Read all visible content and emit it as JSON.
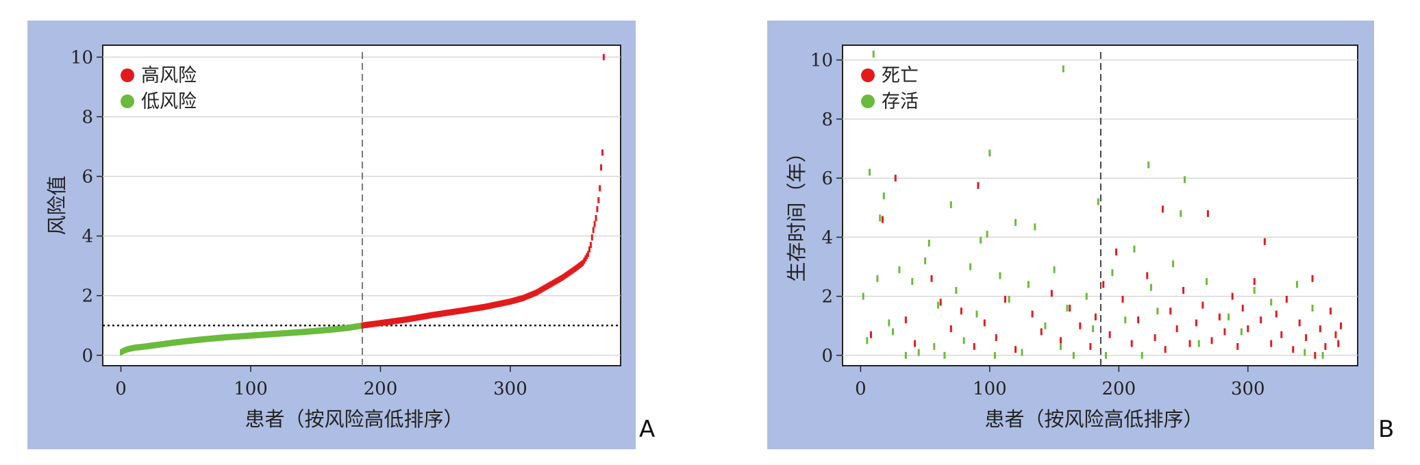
{
  "chart_data": [
    {
      "panel_label": "A",
      "type": "scatter",
      "xlabel": "患者（按风险高低排序）",
      "ylabel": "风险值",
      "xlim": [
        -14,
        385
      ],
      "ylim": [
        -0.35,
        10.4
      ],
      "xticks": [
        "0",
        "100",
        "200",
        "300"
      ],
      "xtick_values": [
        0,
        100,
        200,
        300
      ],
      "yticks": [
        "0",
        "2",
        "4",
        "6",
        "8",
        "10"
      ],
      "ytick_values": [
        0,
        2,
        4,
        6,
        8,
        10
      ],
      "grid": "horizontal",
      "legend_position": "top-left",
      "cutoff_x": 186,
      "cutoff_y": 1.0,
      "n_patients": 373,
      "series": [
        {
          "name": "高风险",
          "color": "#e31a1c",
          "x": [
            186,
            200,
            220,
            240,
            260,
            280,
            300,
            310,
            320,
            330,
            340,
            350,
            356,
            360,
            362,
            364,
            366,
            368,
            369,
            370,
            371,
            372
          ],
          "y": [
            1.0,
            1.08,
            1.2,
            1.35,
            1.48,
            1.62,
            1.8,
            1.92,
            2.1,
            2.35,
            2.6,
            2.9,
            3.1,
            3.4,
            3.7,
            4.2,
            4.6,
            5.2,
            5.6,
            6.3,
            6.8,
            10.0
          ]
        },
        {
          "name": "低风险",
          "color": "#6abb3c",
          "x": [
            0,
            2,
            5,
            10,
            20,
            40,
            60,
            80,
            100,
            120,
            140,
            160,
            175,
            185
          ],
          "y": [
            0.1,
            0.15,
            0.2,
            0.25,
            0.3,
            0.42,
            0.52,
            0.6,
            0.66,
            0.72,
            0.78,
            0.85,
            0.92,
            0.99
          ]
        }
      ]
    },
    {
      "panel_label": "B",
      "type": "scatter",
      "xlabel": "患者（按风险高低排序）",
      "ylabel": "生存时间（年）",
      "xlim": [
        -14,
        385
      ],
      "ylim": [
        -0.35,
        10.5
      ],
      "xticks": [
        "0",
        "100",
        "200",
        "300"
      ],
      "xtick_values": [
        0,
        100,
        200,
        300
      ],
      "yticks": [
        "0",
        "2",
        "4",
        "6",
        "8",
        "10"
      ],
      "ytick_values": [
        0,
        2,
        4,
        6,
        8,
        10
      ],
      "grid": "horizontal",
      "legend_position": "top-left",
      "cutoff_x": 186,
      "series": [
        {
          "name": "死亡",
          "color": "#e31a1c",
          "x": [
            8,
            17,
            27,
            35,
            42,
            55,
            62,
            70,
            78,
            88,
            91,
            96,
            105,
            112,
            120,
            133,
            140,
            148,
            155,
            162,
            170,
            178,
            182,
            188,
            193,
            198,
            203,
            210,
            215,
            222,
            228,
            234,
            236,
            240,
            245,
            250,
            255,
            260,
            265,
            269,
            272,
            278,
            282,
            288,
            292,
            296,
            300,
            305,
            310,
            313,
            318,
            322,
            326,
            330,
            335,
            340,
            345,
            350,
            352,
            356,
            360,
            364,
            368,
            370,
            372
          ],
          "y": [
            0.7,
            4.6,
            6.0,
            1.2,
            0.4,
            2.6,
            1.8,
            0.9,
            1.5,
            0.3,
            5.75,
            1.1,
            0.6,
            1.9,
            0.2,
            1.4,
            0.8,
            2.1,
            0.5,
            1.6,
            1.0,
            0.3,
            1.3,
            2.4,
            0.7,
            3.5,
            1.9,
            0.4,
            1.2,
            2.7,
            0.6,
            4.95,
            0.2,
            1.5,
            0.9,
            2.2,
            0.4,
            1.1,
            1.7,
            4.8,
            0.5,
            1.3,
            0.8,
            2.0,
            0.3,
            1.6,
            0.9,
            2.5,
            1.2,
            3.85,
            0.4,
            1.4,
            0.7,
            1.9,
            0.2,
            1.1,
            0.6,
            2.6,
            0.0,
            0.9,
            0.3,
            1.5,
            0.7,
            0.4,
            1.0
          ]
        },
        {
          "name": "存活",
          "color": "#6abb3c",
          "x": [
            2,
            5,
            7,
            10,
            13,
            15,
            18,
            22,
            25,
            30,
            35,
            40,
            45,
            50,
            53,
            57,
            60,
            65,
            70,
            74,
            80,
            85,
            90,
            93,
            98,
            100,
            104,
            108,
            115,
            120,
            125,
            130,
            135,
            143,
            150,
            155,
            157,
            160,
            165,
            175,
            180,
            184,
            190,
            195,
            205,
            212,
            218,
            223,
            225,
            230,
            242,
            248,
            251,
            262,
            268,
            285,
            295,
            305,
            318,
            338,
            344,
            350,
            358
          ],
          "y": [
            2.0,
            0.5,
            6.2,
            10.2,
            2.6,
            4.65,
            5.4,
            1.1,
            0.8,
            2.9,
            0.0,
            2.5,
            0.1,
            3.2,
            3.8,
            0.3,
            1.7,
            0.0,
            5.1,
            2.2,
            0.5,
            3.0,
            1.4,
            3.9,
            4.1,
            6.85,
            0.0,
            2.7,
            1.9,
            4.5,
            0.1,
            2.4,
            4.35,
            1.0,
            2.9,
            0.3,
            9.7,
            1.6,
            0.0,
            2.0,
            0.9,
            5.2,
            0.0,
            2.8,
            1.2,
            3.6,
            0.0,
            6.45,
            2.3,
            1.5,
            3.1,
            4.8,
            5.95,
            0.4,
            2.5,
            1.3,
            0.8,
            2.2,
            1.8,
            2.4,
            0.1,
            1.6,
            0.0
          ]
        }
      ]
    }
  ]
}
